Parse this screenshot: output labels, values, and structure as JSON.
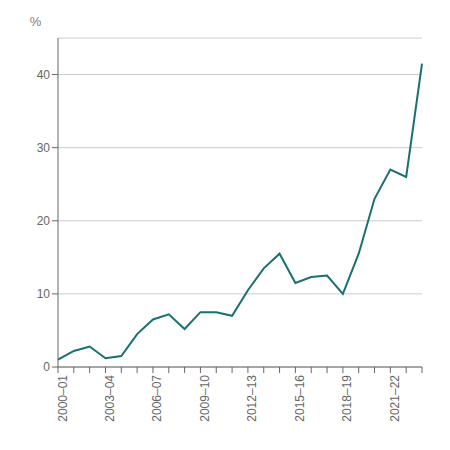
{
  "chart_data": {
    "type": "line",
    "categories": [
      "2000–01",
      null,
      null,
      "2003–04",
      null,
      null,
      "2006–07",
      null,
      null,
      "2009–10",
      null,
      null,
      "2012–13",
      null,
      null,
      "2015–16",
      null,
      null,
      "2018–19",
      null,
      null,
      "2021–22",
      null,
      null
    ],
    "values": [
      1.0,
      2.2,
      2.8,
      1.2,
      1.5,
      4.5,
      6.5,
      7.2,
      5.2,
      7.5,
      7.5,
      7.0,
      10.5,
      13.5,
      15.5,
      11.5,
      12.3,
      12.5,
      10.0,
      15.5,
      23.0,
      27.0,
      26.0,
      41.5
    ],
    "color": "#1a7070",
    "ylabel": "%",
    "ylim": [
      0,
      45
    ],
    "yticks": [
      0,
      10,
      20,
      30,
      40
    ],
    "grid": true
  }
}
